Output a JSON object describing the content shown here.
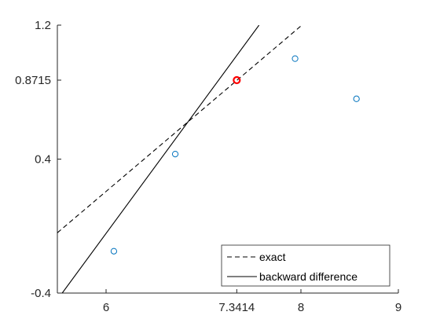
{
  "chart_data": {
    "type": "line",
    "xlim": [
      5.5,
      9
    ],
    "ylim": [
      -0.4,
      1.2
    ],
    "xticks": [
      6,
      7.3414,
      8,
      9
    ],
    "xtick_labels": [
      "6",
      "7.3414",
      "8",
      "9"
    ],
    "yticks": [
      -0.4,
      0.4,
      0.8715,
      1.2
    ],
    "ytick_labels": [
      "-0.4",
      "0.4",
      "0.8715",
      "1.2"
    ],
    "grid": false,
    "legend_position": "bottom-right",
    "series": [
      {
        "name": "exact",
        "style": "dashed",
        "color": "#000000",
        "x": [
          5.5,
          8.01
        ],
        "y": [
          -0.04,
          1.2
        ]
      },
      {
        "name": "backward difference",
        "style": "solid",
        "color": "#000000",
        "x": [
          5.55,
          7.57
        ],
        "y": [
          -0.4,
          1.2
        ]
      },
      {
        "name": "",
        "style": "markers",
        "marker": "circle",
        "color": "#0072BD",
        "x": [
          6.08,
          6.71,
          7.94,
          8.57
        ],
        "y": [
          -0.15,
          0.43,
          1.0,
          0.76
        ]
      },
      {
        "name": "",
        "style": "markers",
        "marker": "circle",
        "color": "#FF0000",
        "x": [
          7.3414
        ],
        "y": [
          0.8715
        ]
      }
    ]
  }
}
